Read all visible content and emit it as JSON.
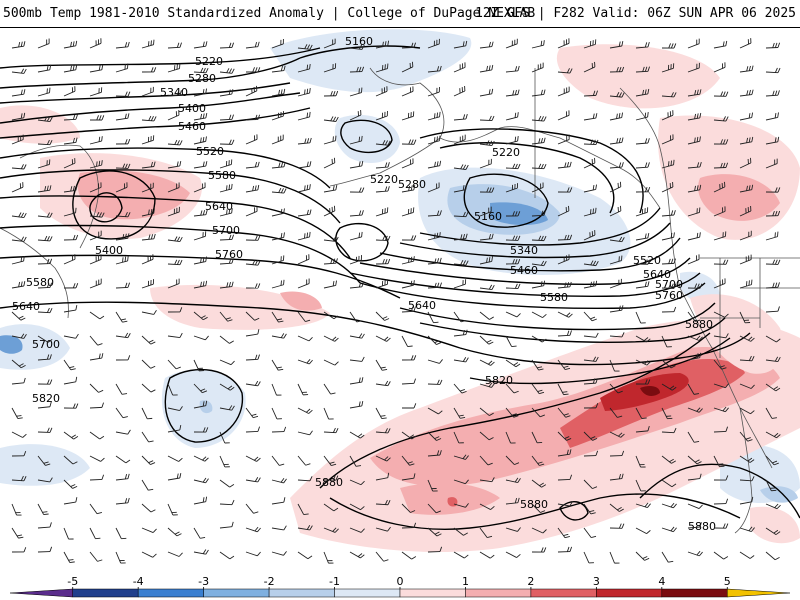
{
  "header": {
    "left_title": "500mb Temp 1981-2010 Standardized Anomaly | College of DuPage NEXLAB",
    "right_title": "12Z GFS | F282 Valid: 06Z SUN APR 06 2025"
  },
  "colors": {
    "background": "#ffffff",
    "neg_weak": "#dde8f5",
    "neg_mid": "#b7cfea",
    "neg_strong": "#6d9fd6",
    "pos_weak": "#fbdcdc",
    "pos_mid": "#f4aeb0",
    "pos_strong": "#e06064",
    "pos_extreme": "#c0272d",
    "pos_max": "#7a0c10",
    "contour": "#000000",
    "coast": "#555555"
  },
  "height_labels": [
    {
      "id": "h5160a",
      "text": "5160"
    },
    {
      "id": "h5220a",
      "text": "5220"
    },
    {
      "id": "h5280a",
      "text": "5280"
    },
    {
      "id": "h5340a",
      "text": "5340"
    },
    {
      "id": "h5400a",
      "text": "5400"
    },
    {
      "id": "h5460a",
      "text": "5460"
    },
    {
      "id": "h5520a",
      "text": "5520"
    },
    {
      "id": "h5580a",
      "text": "5580"
    },
    {
      "id": "h5640a",
      "text": "5640"
    },
    {
      "id": "h5700a",
      "text": "5700"
    },
    {
      "id": "h5760a",
      "text": "5760"
    },
    {
      "id": "h5400b",
      "text": "5400"
    },
    {
      "id": "h5580b",
      "text": "5580"
    },
    {
      "id": "h5640b",
      "text": "5640"
    },
    {
      "id": "h5700b",
      "text": "5700"
    },
    {
      "id": "h5820a",
      "text": "5820"
    },
    {
      "id": "h5220b",
      "text": "5220"
    },
    {
      "id": "h5280b",
      "text": "5280"
    },
    {
      "id": "h5220c",
      "text": "5220"
    },
    {
      "id": "h5160b",
      "text": "5160"
    },
    {
      "id": "h5340b",
      "text": "5340"
    },
    {
      "id": "h5460b",
      "text": "5460"
    },
    {
      "id": "h5580c",
      "text": "5580"
    },
    {
      "id": "h5640c",
      "text": "5640"
    },
    {
      "id": "h5520b",
      "text": "5520"
    },
    {
      "id": "h5640d",
      "text": "5640"
    },
    {
      "id": "h5700c",
      "text": "5700"
    },
    {
      "id": "h5760b",
      "text": "5760"
    },
    {
      "id": "h5880a",
      "text": "5880"
    },
    {
      "id": "h5820b",
      "text": "5820"
    },
    {
      "id": "h5880b",
      "text": "5880"
    },
    {
      "id": "h5880c",
      "text": "5880"
    },
    {
      "id": "h5880d",
      "text": "5880"
    }
  ],
  "colorbar": {
    "ticks": [
      "-5",
      "-4",
      "-3",
      "-2",
      "-1",
      "0",
      "1",
      "2",
      "3",
      "4",
      "5"
    ],
    "bins": [
      {
        "min": -5.5,
        "max": -5,
        "color": "#5a2d8c"
      },
      {
        "min": -5,
        "max": -4,
        "color": "#1f3f8c"
      },
      {
        "min": -4,
        "max": -3,
        "color": "#3a7fd0"
      },
      {
        "min": -3,
        "max": -2,
        "color": "#7fb0e0"
      },
      {
        "min": -2,
        "max": -1,
        "color": "#b7cfea"
      },
      {
        "min": -1,
        "max": 0,
        "color": "#dde8f5"
      },
      {
        "min": 0,
        "max": 1,
        "color": "#fbdcdc"
      },
      {
        "min": 1,
        "max": 2,
        "color": "#f4aeb0"
      },
      {
        "min": 2,
        "max": 3,
        "color": "#e06064"
      },
      {
        "min": 3,
        "max": 4,
        "color": "#c0272d"
      },
      {
        "min": 4,
        "max": 5,
        "color": "#7a0c10"
      },
      {
        "min": 5,
        "max": 5.5,
        "color": "#f2c200"
      }
    ]
  }
}
